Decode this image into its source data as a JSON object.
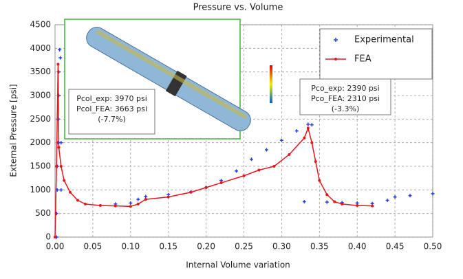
{
  "chart_data": {
    "type": "line",
    "title": "Pressure vs. Volume",
    "xlabel": "Internal Volume variation",
    "ylabel": "External Pressure [psi]",
    "xlim": [
      0,
      0.5
    ],
    "ylim": [
      0,
      4500
    ],
    "xticks": [
      {
        "value": 0,
        "label": "0.00"
      },
      {
        "value": 0.05,
        "label": "0.05"
      },
      {
        "value": 0.1,
        "label": "0.10"
      },
      {
        "value": 0.15,
        "label": "0.15"
      },
      {
        "value": 0.2,
        "label": "0.20"
      },
      {
        "value": 0.25,
        "label": "0.25"
      },
      {
        "value": 0.3,
        "label": "0.30"
      },
      {
        "value": 0.35,
        "label": "0.35"
      },
      {
        "value": 0.4,
        "label": "0.40"
      },
      {
        "value": 0.45,
        "label": "0.45"
      },
      {
        "value": 0.5,
        "label": "0.50"
      }
    ],
    "yticks": [
      0,
      500,
      1000,
      1500,
      2000,
      2500,
      3000,
      3500,
      4000,
      4500
    ],
    "grid": true,
    "legend": "upper right",
    "series": [
      {
        "name": "Experimental",
        "color": "#1f3fe0",
        "line": false,
        "x": [
          0.002,
          0.002,
          0.003,
          0.003,
          0.004,
          0.004,
          0.005,
          0.005,
          0.006,
          0.007,
          0.008,
          0.008,
          0.08,
          0.1,
          0.11,
          0.12,
          0.15,
          0.18,
          0.2,
          0.22,
          0.24,
          0.26,
          0.28,
          0.3,
          0.32,
          0.335,
          0.34,
          0.33,
          0.36,
          0.38,
          0.4,
          0.42,
          0.44,
          0.45,
          0.47,
          0.5
        ],
        "values": [
          0,
          500,
          1000,
          1500,
          2000,
          2500,
          3000,
          3500,
          3970,
          3800,
          2000,
          1000,
          700,
          720,
          800,
          860,
          900,
          960,
          1050,
          1200,
          1400,
          1650,
          1850,
          2050,
          2250,
          2390,
          2380,
          750,
          740,
          730,
          720,
          710,
          780,
          850,
          880,
          920
        ]
      },
      {
        "name": "FEA",
        "color": "#e8141c",
        "line": true,
        "x": [
          0,
          0.002,
          0.004,
          0.005,
          0.008,
          0.012,
          0.02,
          0.03,
          0.04,
          0.06,
          0.08,
          0.1,
          0.11,
          0.12,
          0.15,
          0.18,
          0.2,
          0.22,
          0.25,
          0.27,
          0.29,
          0.31,
          0.33,
          0.335,
          0.34,
          0.345,
          0.35,
          0.36,
          0.37,
          0.38,
          0.4,
          0.42
        ],
        "values": [
          0,
          1500,
          3663,
          1900,
          1500,
          1200,
          950,
          780,
          700,
          670,
          660,
          650,
          700,
          800,
          850,
          950,
          1050,
          1150,
          1300,
          1420,
          1500,
          1750,
          2100,
          2310,
          2000,
          1600,
          1200,
          900,
          750,
          700,
          670,
          660
        ]
      }
    ],
    "annotations": [
      {
        "lines": [
          "Pcol_exp:  3970 psi",
          "Pcol_FEA:  3663 psi",
          "(-7.7%)"
        ]
      },
      {
        "lines": [
          "Pco_exp:  2390 psi",
          "Pco_FEA: 2310 psi",
          "(-3.3%)"
        ]
      }
    ]
  }
}
